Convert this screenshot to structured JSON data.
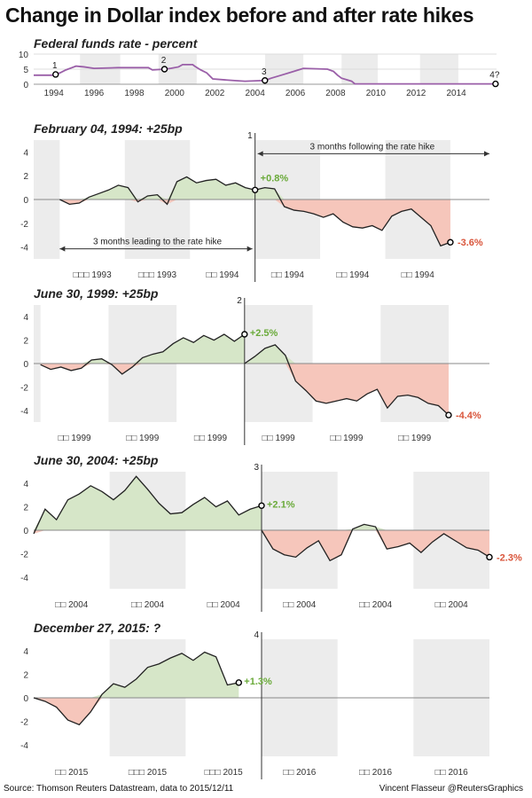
{
  "title": "Change in Dollar index before and after rate hikes",
  "footer": {
    "source": "Source: Thomson Reuters Datastream, data to 2015/12/11",
    "credit": "Vincent Flasseur @ReutersGraphics"
  },
  "colors": {
    "pos_fill": "#d6e6c8",
    "neg_fill": "#f6c6bb",
    "pos_text": "#6aaa3a",
    "neg_text": "#d9553b",
    "band": "#ececec",
    "line": "#222222",
    "fed_line": "#9a5fa8"
  },
  "chart_data": [
    {
      "type": "line",
      "title": "Federal funds rate - percent",
      "ylim": [
        0,
        10
      ],
      "yticks": [
        0,
        5,
        10
      ],
      "xlim": [
        1993,
        2016
      ],
      "xticks": [
        "1994",
        "1996",
        "1998",
        "2000",
        "2002",
        "2004",
        "2006",
        "2008",
        "2010",
        "2012",
        "2014"
      ],
      "shaded_bands": [
        [
          1995.3,
          1997.3
        ],
        [
          1999.2,
          2001.1
        ],
        [
          2004.5,
          2006.4
        ],
        [
          2008.3,
          2010.1
        ],
        [
          2012.2,
          2014.1
        ]
      ],
      "series": [
        {
          "x": [
            1993,
            1993.9,
            1994.09,
            1994.3,
            1994.6,
            1994.9,
            1995.1,
            1995.5,
            1996,
            1997.2,
            1998.7,
            1998.9,
            1999.5,
            1999.8,
            2000.2,
            2000.4,
            2000.9,
            2001.0,
            2001.3,
            2001.6,
            2001.9,
            2002.9,
            2003.5,
            2004.49,
            2004.8,
            2005.3,
            2005.8,
            2006.4,
            2007.6,
            2007.9,
            2008.1,
            2008.3,
            2008.8,
            2008.96,
            2015.95
          ],
          "y": [
            3,
            3,
            3.25,
            3.75,
            4.75,
            5.5,
            6,
            5.75,
            5.25,
            5.5,
            5.5,
            4.75,
            5.0,
            5.25,
            5.75,
            6.5,
            6.5,
            6.0,
            4.75,
            3.75,
            1.75,
            1.25,
            1.0,
            1.25,
            2.0,
            3.0,
            4.0,
            5.25,
            5.0,
            4.25,
            3.0,
            2.0,
            1.0,
            0.12,
            0.12
          ]
        }
      ],
      "markers": [
        {
          "label": "1",
          "x": 1994.09,
          "y": 3.25
        },
        {
          "label": "2",
          "x": 1999.5,
          "y": 5.0
        },
        {
          "label": "3",
          "x": 2004.49,
          "y": 1.25
        },
        {
          "label": "4?",
          "x": 2015.95,
          "y": 0.12
        }
      ]
    },
    {
      "type": "area",
      "title": "February 04, 1994: +25bp",
      "ylim": [
        -5,
        5
      ],
      "yticks": [
        -4,
        -2,
        0,
        2,
        4
      ],
      "xlim": [
        -3.4,
        3.6
      ],
      "month_labels": [
        "□□□ 1993",
        "□□□ 1993",
        "□□ 1994",
        "□□ 1994",
        "□□ 1994",
        "□□ 1994"
      ],
      "event_label": "1",
      "before_value": "+0.8%",
      "after_value": "-3.6%",
      "annotation_before": "3 months leading to the rate hike",
      "annotation_after": "3 months following the rate hike",
      "before_x": [
        -3.0,
        -2.85,
        -2.7,
        -2.55,
        -2.4,
        -2.25,
        -2.1,
        -1.95,
        -1.8,
        -1.65,
        -1.5,
        -1.35,
        -1.2,
        -1.05,
        -0.9,
        -0.75,
        -0.6,
        -0.45,
        -0.3,
        -0.15,
        0
      ],
      "before_y": [
        0.0,
        -0.4,
        -0.3,
        0.2,
        0.5,
        0.8,
        1.2,
        1.0,
        -0.2,
        0.3,
        0.4,
        -0.4,
        1.5,
        1.9,
        1.4,
        1.6,
        1.7,
        1.2,
        1.4,
        1.0,
        0.8
      ],
      "after_x": [
        0,
        0.15,
        0.3,
        0.45,
        0.6,
        0.75,
        0.9,
        1.05,
        1.2,
        1.35,
        1.5,
        1.65,
        1.8,
        1.95,
        2.1,
        2.25,
        2.4,
        2.55,
        2.7,
        2.85,
        3.0
      ],
      "after_y": [
        0.8,
        1.0,
        0.9,
        -0.6,
        -0.9,
        -1.0,
        -1.2,
        -1.5,
        -1.2,
        -1.9,
        -2.3,
        -2.4,
        -2.2,
        -2.6,
        -1.4,
        -1.0,
        -0.8,
        -1.5,
        -2.2,
        -3.9,
        -3.6
      ]
    },
    {
      "type": "area",
      "title": "June 30, 1999: +25bp",
      "ylim": [
        -5,
        5
      ],
      "yticks": [
        -4,
        -2,
        0,
        2,
        4
      ],
      "xlim": [
        -3.1,
        3.6
      ],
      "month_labels": [
        "□□ 1999",
        "□□ 1999",
        "□□ 1999",
        "□□ 1999",
        "□□ 1999",
        "□□ 1999"
      ],
      "event_label": "2",
      "before_value": "+2.5%",
      "after_value": "-4.4%",
      "before_x": [
        -3.0,
        -2.85,
        -2.7,
        -2.55,
        -2.4,
        -2.25,
        -2.1,
        -1.95,
        -1.8,
        -1.65,
        -1.5,
        -1.35,
        -1.2,
        -1.05,
        -0.9,
        -0.75,
        -0.6,
        -0.45,
        -0.3,
        -0.15,
        0
      ],
      "before_y": [
        -0.1,
        -0.5,
        -0.3,
        -0.6,
        -0.4,
        0.3,
        0.4,
        -0.1,
        -0.9,
        -0.3,
        0.5,
        0.8,
        1.0,
        1.7,
        2.2,
        1.8,
        2.4,
        2.0,
        2.5,
        1.9,
        2.5
      ],
      "after_x": [
        0,
        0.15,
        0.3,
        0.45,
        0.6,
        0.75,
        0.9,
        1.05,
        1.2,
        1.35,
        1.5,
        1.65,
        1.8,
        1.95,
        2.1,
        2.25,
        2.4,
        2.55,
        2.7,
        2.85,
        3.0
      ],
      "after_y": [
        0.0,
        0.6,
        1.3,
        1.6,
        0.7,
        -1.5,
        -2.3,
        -3.2,
        -3.4,
        -3.2,
        -3.0,
        -3.2,
        -2.6,
        -2.2,
        -3.8,
        -2.8,
        -2.7,
        -2.9,
        -3.4,
        -3.6,
        -4.4
      ]
    },
    {
      "type": "area",
      "title": "June 30, 2004: +25bp",
      "ylim": [
        -5,
        5
      ],
      "yticks": [
        -4,
        -2,
        0,
        2,
        4
      ],
      "xlim": [
        -3.0,
        3.0
      ],
      "month_labels": [
        "□□ 2004",
        "□□ 2004",
        "□□ 2004",
        "□□ 2004",
        "□□ 2004",
        "□□ 2004"
      ],
      "event_label": "3",
      "before_value": "+2.1%",
      "after_value": "-2.3%",
      "before_x": [
        -3.0,
        -2.85,
        -2.7,
        -2.55,
        -2.4,
        -2.25,
        -2.1,
        -1.95,
        -1.8,
        -1.65,
        -1.5,
        -1.35,
        -1.2,
        -1.05,
        -0.9,
        -0.75,
        -0.6,
        -0.45,
        -0.3,
        -0.15,
        0
      ],
      "before_y": [
        -0.3,
        1.8,
        0.9,
        2.6,
        3.1,
        3.8,
        3.3,
        2.6,
        3.4,
        4.6,
        3.5,
        2.3,
        1.4,
        1.5,
        2.2,
        2.8,
        2.0,
        2.5,
        1.3,
        1.8,
        2.1
      ],
      "after_x": [
        0,
        0.15,
        0.3,
        0.45,
        0.6,
        0.75,
        0.9,
        1.05,
        1.2,
        1.35,
        1.5,
        1.65,
        1.8,
        1.95,
        2.1,
        2.25,
        2.4,
        2.55,
        2.7,
        2.85,
        3.0
      ],
      "after_y": [
        0.0,
        -1.6,
        -2.1,
        -2.3,
        -1.5,
        -0.9,
        -2.6,
        -2.1,
        0.1,
        0.5,
        0.3,
        -1.6,
        -1.4,
        -1.1,
        -1.9,
        -1.0,
        -0.3,
        -0.9,
        -1.5,
        -1.7,
        -2.3
      ]
    },
    {
      "type": "area",
      "title": "December 27, 2015: ?",
      "ylim": [
        -5,
        5
      ],
      "yticks": [
        -4,
        -2,
        0,
        2,
        4
      ],
      "xlim": [
        -3.0,
        3.0
      ],
      "month_labels": [
        "□□ 2015",
        "□□□ 2015",
        "□□□ 2015",
        "□□ 2016",
        "□□ 2016",
        "□□ 2016"
      ],
      "event_label": "4",
      "before_value": "+1.3%",
      "after_value": "",
      "before_x": [
        -3.0,
        -2.85,
        -2.7,
        -2.55,
        -2.4,
        -2.25,
        -2.1,
        -1.95,
        -1.8,
        -1.65,
        -1.5,
        -1.35,
        -1.2,
        -1.05,
        -0.9,
        -0.75,
        -0.6,
        -0.45,
        -0.3
      ],
      "before_y": [
        0.0,
        -0.3,
        -0.8,
        -1.9,
        -2.3,
        -1.2,
        0.3,
        1.2,
        0.9,
        1.6,
        2.6,
        2.9,
        3.4,
        3.8,
        3.2,
        3.9,
        3.5,
        1.1,
        1.3
      ],
      "after_x": [],
      "after_y": []
    }
  ]
}
